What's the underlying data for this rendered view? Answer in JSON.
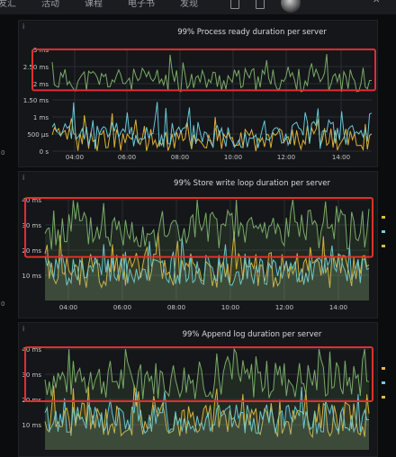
{
  "topbar": {
    "items": [
      "友汇",
      "活动",
      "课程",
      "电子书",
      "发现"
    ],
    "close": "✕"
  },
  "colors": {
    "green": "#7eb26d",
    "yellow": "#eab839",
    "blue": "#6ed0e0",
    "red": "#e02f2f",
    "grid": "#2a2d33"
  },
  "chart_data": [
    {
      "type": "line",
      "title": "99% Process ready duration per server",
      "x_ticks": [
        "04:00",
        "06:00",
        "08:00",
        "10:00",
        "12:00",
        "14:00"
      ],
      "y_ticks": [
        "0 s",
        "500 µs",
        "1 ms",
        "1.50 ms",
        "2 ms",
        "2.50 ms",
        "3 ms"
      ],
      "ylim": [
        0,
        3
      ],
      "y_unit": "ms",
      "series": [
        {
          "color": "#7eb26d",
          "base": 2.1,
          "amp": 0.35,
          "seed": 11
        },
        {
          "color": "#6ed0e0",
          "base": 0.5,
          "amp": 0.45,
          "seed": 23
        },
        {
          "color": "#eab839",
          "base": 0.35,
          "amp": 0.35,
          "seed": 37
        }
      ],
      "highlight_range": [
        1.85,
        2.95
      ]
    },
    {
      "type": "line",
      "title": "99% Store write loop duration per server",
      "x_ticks": [
        "04:00",
        "06:00",
        "08:00",
        "10:00",
        "12:00",
        "14:00"
      ],
      "y_ticks": [
        "10 ms",
        "20 ms",
        "30 ms",
        "40 ms"
      ],
      "ylim": [
        0,
        40
      ],
      "y_unit": "ms",
      "series": [
        {
          "color": "#7eb26d",
          "base": 28,
          "amp": 8,
          "seed": 5
        },
        {
          "color": "#6ed0e0",
          "base": 12,
          "amp": 6,
          "seed": 19
        },
        {
          "color": "#eab839",
          "base": 12,
          "amp": 7,
          "seed": 29
        }
      ],
      "highlight_range": [
        18,
        40
      ]
    },
    {
      "type": "line",
      "title": "99% Append log duration per server",
      "x_ticks": [],
      "y_ticks": [
        "10 ms",
        "20 ms",
        "30 ms",
        "40 ms"
      ],
      "ylim": [
        0,
        40
      ],
      "y_unit": "ms",
      "series": [
        {
          "color": "#7eb26d",
          "base": 28,
          "amp": 8,
          "seed": 7
        },
        {
          "color": "#6ed0e0",
          "base": 12,
          "amp": 6,
          "seed": 13
        },
        {
          "color": "#eab839",
          "base": 12,
          "amp": 7,
          "seed": 31
        }
      ],
      "highlight_range": [
        20,
        40
      ]
    }
  ],
  "side_ticks": [
    "0",
    "0",
    "0"
  ]
}
